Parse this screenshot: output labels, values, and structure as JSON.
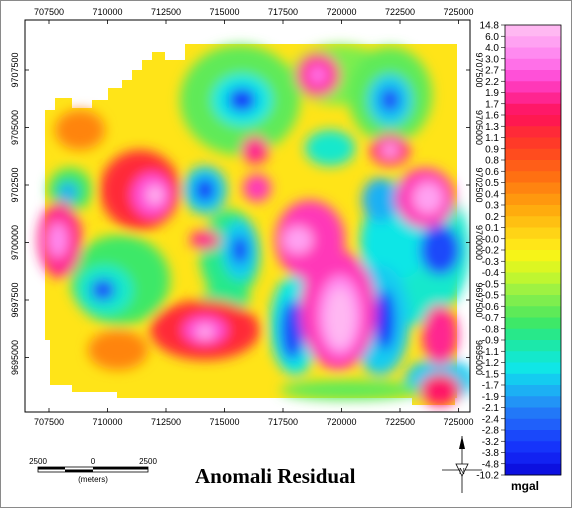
{
  "map": {
    "title": "Anomali Residual",
    "x_ticks": [
      "707500",
      "710000",
      "712500",
      "715000",
      "717500",
      "720000",
      "722500",
      "725000"
    ],
    "y_ticks": [
      "9707500",
      "9705000",
      "9702500",
      "9700000",
      "9697500",
      "9695000"
    ]
  },
  "legend": {
    "unit": "mgal",
    "levels": [
      "14.8",
      "6.0",
      "4.0",
      "3.0",
      "2.7",
      "2.2",
      "1.9",
      "1.7",
      "1.6",
      "1.3",
      "1.1",
      "0.9",
      "0.8",
      "0.6",
      "0.5",
      "0.4",
      "0.3",
      "0.2",
      "0.1",
      "-0.0",
      "-0.2",
      "-0.3",
      "-0.4",
      "-0.5",
      "-0.5",
      "-0.6",
      "-0.7",
      "-0.8",
      "-0.9",
      "-1.1",
      "-1.2",
      "-1.5",
      "-1.7",
      "-1.9",
      "-2.1",
      "-2.4",
      "-2.8",
      "-3.2",
      "-3.8",
      "-4.8",
      "-10.2"
    ],
    "colors": [
      "#ffb8f2",
      "#ffa2f2",
      "#ff8af0",
      "#ff70e8",
      "#ff50d8",
      "#ff38b8",
      "#ff2590",
      "#ff1868",
      "#ff1850",
      "#ff2a38",
      "#ff3a28",
      "#ff4c1e",
      "#ff5e18",
      "#ff7012",
      "#ff8410",
      "#ff980e",
      "#ffac0e",
      "#ffc012",
      "#ffd416",
      "#ffe618",
      "#f6f418",
      "#dcf622",
      "#bff630",
      "#9ef242",
      "#7eee4e",
      "#5eea58",
      "#3ee868",
      "#28e88a",
      "#1ce8aa",
      "#14e8cc",
      "#10e6e6",
      "#14ccf0",
      "#1cb0f4",
      "#2294f6",
      "#2278f8",
      "#2060fa",
      "#1a48fa",
      "#1634fa",
      "#1222f2",
      "#0c10e0"
    ]
  },
  "scale_bar": {
    "labels": [
      "2500",
      "0",
      "2500"
    ],
    "unit": "(meters)"
  },
  "north_arrow": {
    "label": "N"
  }
}
